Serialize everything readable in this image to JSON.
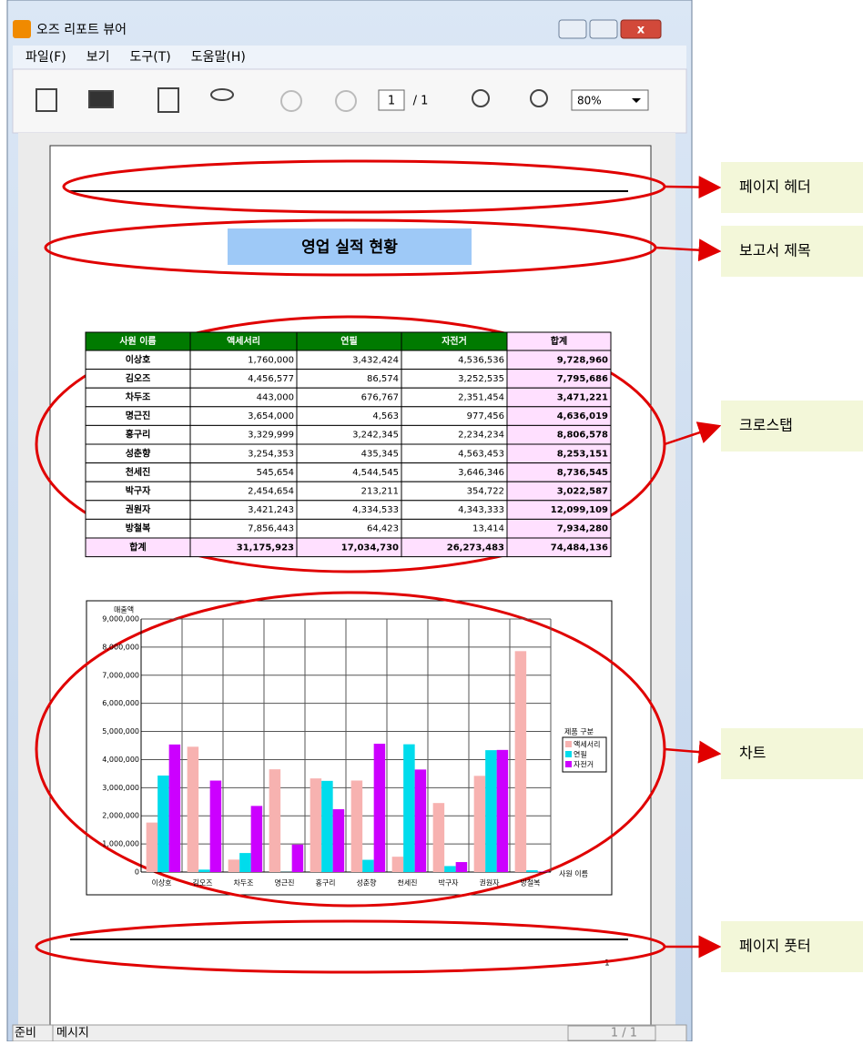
{
  "window": {
    "title": "오즈 리포트 뷰어"
  },
  "menu": [
    "파일(F)",
    "보기",
    "도구(T)",
    "도움말(H)"
  ],
  "toolbar": {
    "page": "1",
    "total": "/ 1",
    "zoom": "80%"
  },
  "report": {
    "title": "영업 실적 현황",
    "table": {
      "header": [
        "사원 이름",
        "액세서리",
        "연필",
        "자전거",
        "합계"
      ],
      "rows": [
        [
          "이상호",
          "1,760,000",
          "3,432,424",
          "4,536,536",
          "9,728,960"
        ],
        [
          "김오즈",
          "4,456,577",
          "86,574",
          "3,252,535",
          "7,795,686"
        ],
        [
          "차두조",
          "443,000",
          "676,767",
          "2,351,454",
          "3,471,221"
        ],
        [
          "명근진",
          "3,654,000",
          "4,563",
          "977,456",
          "4,636,019"
        ],
        [
          "홍구리",
          "3,329,999",
          "3,242,345",
          "2,234,234",
          "8,806,578"
        ],
        [
          "성춘향",
          "3,254,353",
          "435,345",
          "4,563,453",
          "8,253,151"
        ],
        [
          "천세진",
          "545,654",
          "4,544,545",
          "3,646,346",
          "8,736,545"
        ],
        [
          "박구자",
          "2,454,654",
          "213,211",
          "354,722",
          "3,022,587"
        ],
        [
          "권원자",
          "3,421,243",
          "4,334,533",
          "4,343,333",
          "12,099,109"
        ],
        [
          "방철복",
          "7,856,443",
          "64,423",
          "13,414",
          "7,934,280"
        ],
        [
          "합계",
          "31,175,923",
          "17,034,730",
          "26,273,483",
          "74,484,136"
        ]
      ]
    },
    "footer_page": "1"
  },
  "chart_data": {
    "type": "bar",
    "y_label": "매출액",
    "x_label": "사원 이름",
    "legend_title": "제품 구분",
    "categories": [
      "이상호",
      "김오즈",
      "차두조",
      "명근진",
      "홍구리",
      "성춘향",
      "천세진",
      "박구자",
      "권원자",
      "방철복"
    ],
    "series": [
      {
        "name": "액세서리",
        "color": "#f7b2b0",
        "values": [
          1760000,
          4456577,
          443000,
          3654000,
          3329999,
          3254353,
          545654,
          2454654,
          3421243,
          7856443
        ]
      },
      {
        "name": "연필",
        "color": "#00dcec",
        "values": [
          3432424,
          86574,
          676767,
          4563,
          3242345,
          435345,
          4544545,
          213211,
          4334533,
          64423
        ]
      },
      {
        "name": "자전거",
        "color": "#cc00ff",
        "values": [
          4536536,
          3252535,
          2351454,
          977456,
          2234234,
          4563453,
          3646346,
          354722,
          4343333,
          13414
        ]
      }
    ],
    "ylim": [
      0,
      9000000
    ],
    "yticks": [
      0,
      {
        "value": 1000000,
        "label": "1,000,000"
      },
      {
        "value": 2000000,
        "label": "2,000,000"
      },
      {
        "value": 3000000,
        "label": "3,000,000"
      },
      {
        "value": 4000000,
        "label": "4,000,000"
      },
      {
        "value": 5000000,
        "label": "5,000,000"
      },
      {
        "value": 6000000,
        "label": "6,000,000"
      },
      {
        "value": 7000000,
        "label": "7,000,000"
      },
      {
        "value": 8000000,
        "label": "8,000,000"
      },
      {
        "value": 9000000,
        "label": "9,000,000"
      }
    ],
    "grid": true,
    "legend": "right"
  },
  "status": [
    "준비",
    "메시지",
    "1 / 1"
  ],
  "annotations": [
    "페이지 헤더",
    "보고서 제목",
    "크로스탭",
    "차트",
    "페이지 풋터"
  ]
}
